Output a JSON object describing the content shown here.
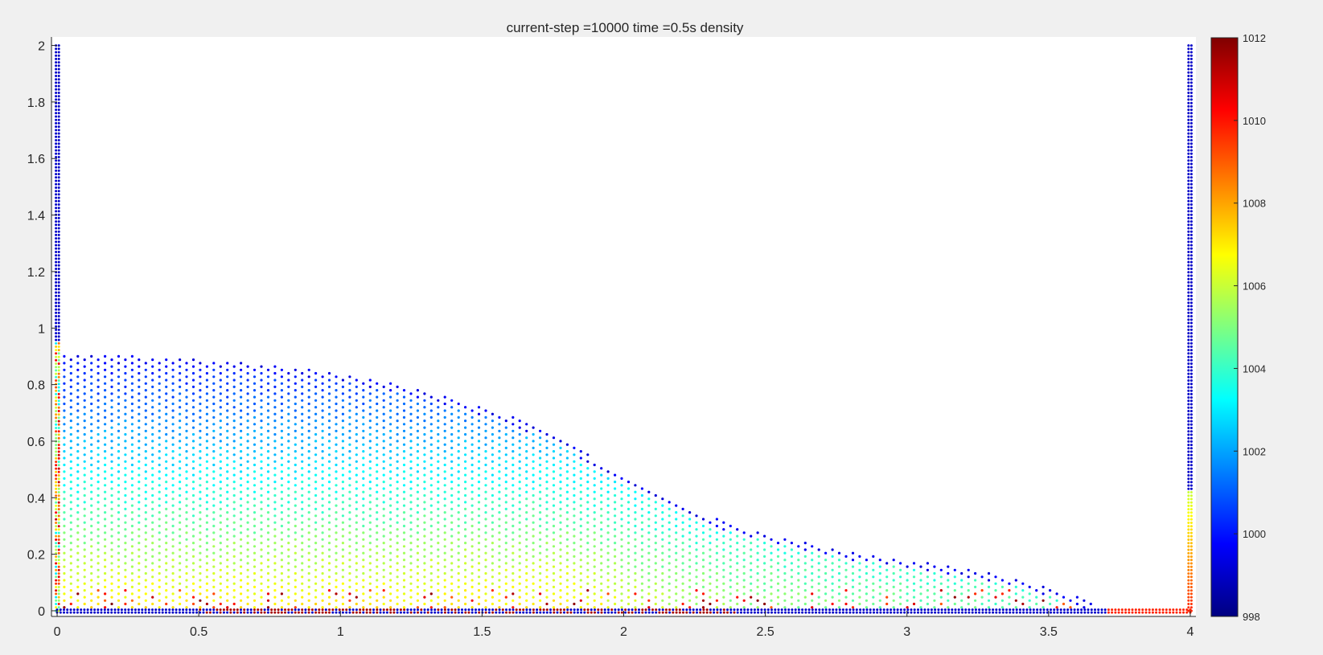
{
  "chart_data": {
    "type": "scatter",
    "title": "current-step =10000    time =0.5s   density",
    "xlabel": "",
    "ylabel": "",
    "xlim": [
      -0.02,
      4.02
    ],
    "ylim": [
      -0.02,
      2.03
    ],
    "xticks": [
      0,
      0.5,
      1,
      1.5,
      2,
      2.5,
      3,
      3.5,
      4
    ],
    "yticks": [
      0,
      0.2,
      0.4,
      0.6,
      0.8,
      1,
      1.2,
      1.4,
      1.6,
      1.8,
      2
    ],
    "grid": false,
    "colormap": "jet",
    "colorbar": {
      "min": 998,
      "max": 1012,
      "ticks": [
        998,
        1000,
        1002,
        1004,
        1006,
        1008,
        1010,
        1012
      ],
      "placement": "right"
    },
    "series": [
      {
        "role": "fluid",
        "surface_profile": {
          "x": [
            0.0,
            0.05,
            0.2,
            0.5,
            0.8,
            1.0,
            1.2,
            1.4,
            1.6,
            1.8,
            2.0,
            2.2,
            2.4,
            2.6,
            2.8,
            3.0,
            3.2,
            3.4,
            3.55,
            3.65
          ],
          "y": [
            0.92,
            0.91,
            0.905,
            0.89,
            0.865,
            0.84,
            0.8,
            0.75,
            0.69,
            0.6,
            0.47,
            0.37,
            0.3,
            0.25,
            0.21,
            0.18,
            0.15,
            0.11,
            0.07,
            0.03
          ]
        },
        "density_top": 999.6,
        "density_bottom": 1007.2
      },
      {
        "role": "boundary",
        "walls": [
          {
            "x": [
              0,
              0
            ],
            "y": [
              0,
              2.0
            ]
          },
          {
            "x": [
              4.0,
              4.0
            ],
            "y": [
              0,
              2.0
            ]
          },
          {
            "x": [
              0,
              4.0
            ],
            "y": [
              0,
              0
            ]
          }
        ]
      }
    ]
  }
}
